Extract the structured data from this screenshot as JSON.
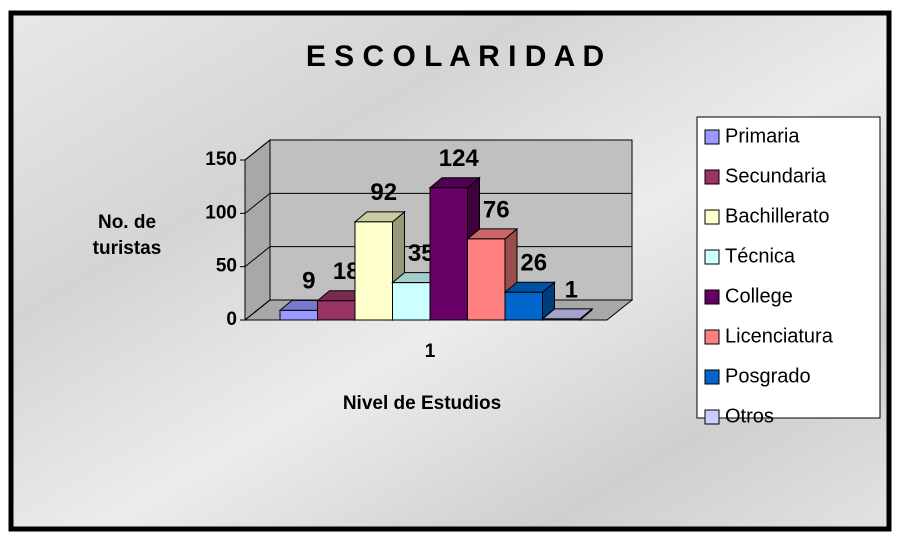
{
  "chart_data": {
    "type": "bar3d",
    "title": "E S C O L A R I D A D",
    "y_label": "No. de turistas",
    "x_label": "Nivel de Estudios",
    "categories": [
      "1"
    ],
    "series": [
      {
        "name": "Primaria",
        "color": "#9999ff",
        "values": [
          9
        ]
      },
      {
        "name": "Secundaria",
        "color": "#993366",
        "values": [
          18
        ]
      },
      {
        "name": "Bachillerato",
        "color": "#ffffcc",
        "values": [
          92
        ]
      },
      {
        "name": "Técnica",
        "color": "#ccffff",
        "values": [
          35
        ]
      },
      {
        "name": "College",
        "color": "#660066",
        "values": [
          124
        ]
      },
      {
        "name": "Licenciatura",
        "color": "#ff8080",
        "values": [
          76
        ]
      },
      {
        "name": "Posgrado",
        "color": "#0066cc",
        "values": [
          26
        ]
      },
      {
        "name": "Otros",
        "color": "#ccccff",
        "values": [
          1
        ]
      }
    ],
    "ylim": [
      0,
      150
    ],
    "yticks": [
      0,
      50,
      100,
      150
    ],
    "grid": true,
    "legend": "right"
  }
}
